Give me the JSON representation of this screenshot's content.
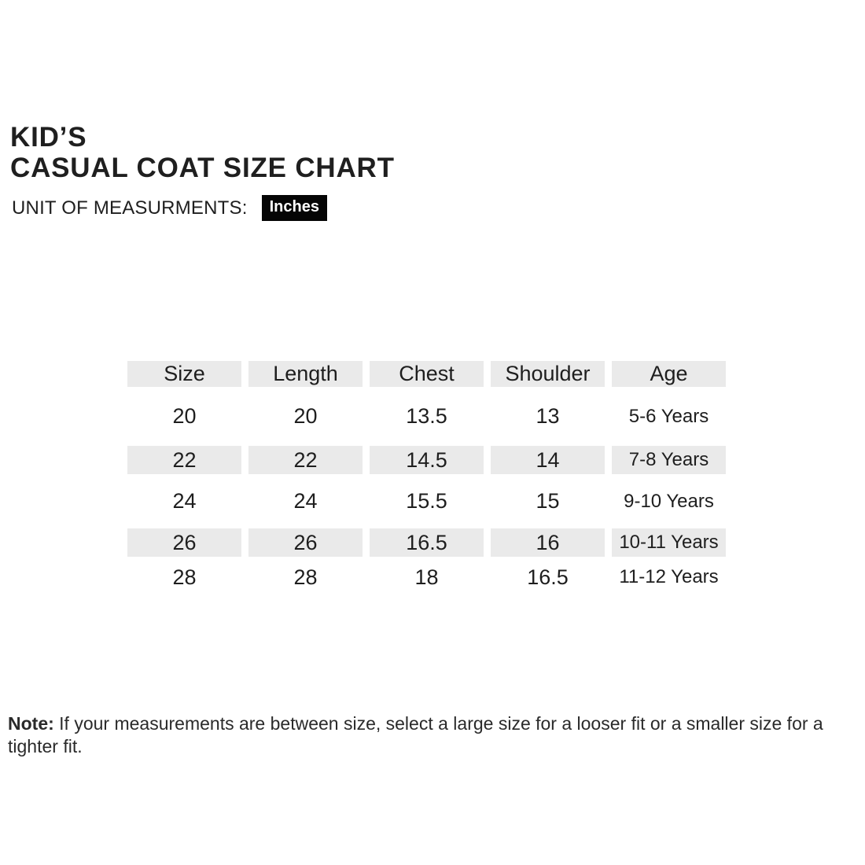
{
  "title": {
    "line1": "KID’S",
    "line2": "CASUAL COAT SIZE CHART"
  },
  "unit": {
    "label": "UNIT OF MEASURMENTS:",
    "value": "Inches"
  },
  "table": {
    "columns": [
      "Size",
      "Length",
      "Chest",
      "Shoulder",
      "Age"
    ],
    "rows": [
      {
        "cells": [
          "20",
          "20",
          "13.5",
          "13",
          "5-6 Years"
        ]
      },
      {
        "cells": [
          "22",
          "22",
          "14.5",
          "14",
          "7-8 Years"
        ]
      },
      {
        "cells": [
          "24",
          "24",
          "15.5",
          "15",
          "9-10 Years"
        ]
      },
      {
        "cells": [
          "26",
          "26",
          "16.5",
          "16",
          "10-11 Years"
        ]
      },
      {
        "cells": [
          "28",
          "28",
          "18",
          "16.5",
          "11-12 Years"
        ]
      }
    ]
  },
  "note": {
    "label": "Note:",
    "text": " If your measurements are between size, select a large size for a looser fit or a smaller size for a tighter fit."
  },
  "colors": {
    "row_shade": "#eaeaea",
    "badge_bg": "#050505",
    "badge_text": "#ffffff",
    "text": "#1e1e1e"
  }
}
